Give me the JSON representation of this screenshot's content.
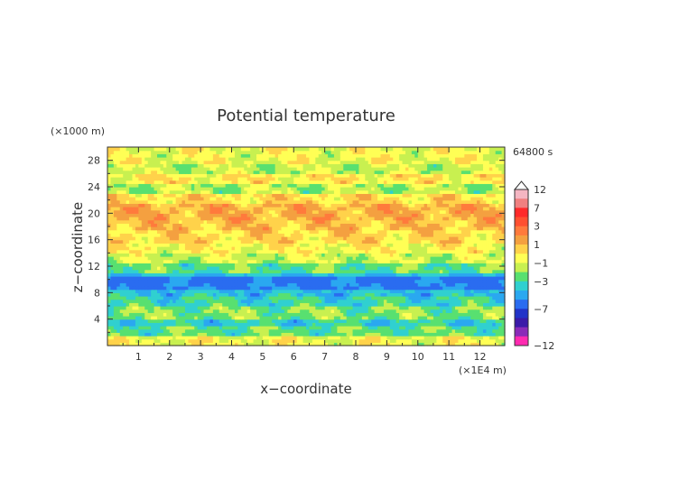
{
  "chart_data": {
    "type": "heatmap",
    "title": "Potential temperature",
    "xlabel": "x−coordinate",
    "ylabel": "z−coordinate",
    "x_unit": "(×1E4 m)",
    "y_unit": "(×1000 m)",
    "time_label": "64800 s",
    "x_ticks": [
      "1",
      "2",
      "3",
      "4",
      "5",
      "6",
      "7",
      "8",
      "9",
      "10",
      "11",
      "12"
    ],
    "y_ticks": [
      "4",
      "8",
      "12",
      "16",
      "20",
      "24",
      "28"
    ],
    "xlim": [
      0,
      12.8
    ],
    "ylim": [
      0,
      30
    ],
    "colorbar": {
      "labels": [
        "12",
        "7",
        "3",
        "1",
        "−1",
        "−3",
        "−7",
        "−12"
      ],
      "label_values": [
        12,
        7,
        3,
        1,
        -1,
        -3,
        -7,
        -12
      ],
      "levels": [
        {
          "value": 12,
          "color": "#f4b6c2"
        },
        {
          "value": 9,
          "color": "#f08080"
        },
        {
          "value": 7,
          "color": "#ff2a2a"
        },
        {
          "value": 5,
          "color": "#ff5030"
        },
        {
          "value": 3,
          "color": "#ff7a3c"
        },
        {
          "value": 2,
          "color": "#f4a040"
        },
        {
          "value": 1,
          "color": "#ffd24a"
        },
        {
          "value": 0,
          "color": "#ffff55"
        },
        {
          "value": -1,
          "color": "#c8f050"
        },
        {
          "value": -2,
          "color": "#58e070"
        },
        {
          "value": -3,
          "color": "#30d0d0"
        },
        {
          "value": -4,
          "color": "#2aa8f0"
        },
        {
          "value": -5,
          "color": "#2a6cf0"
        },
        {
          "value": -7,
          "color": "#2233c8"
        },
        {
          "value": -9,
          "color": "#3a1aa8"
        },
        {
          "value": -10,
          "color": "#8a2ab8"
        },
        {
          "value": -12,
          "color": "#ff2ab0"
        }
      ]
    },
    "bands": [
      {
        "z": [
          0,
          1.6
        ],
        "value": 0.4
      },
      {
        "z": [
          1.6,
          2.8
        ],
        "value": -1.5
      },
      {
        "z": [
          2.8,
          3.8
        ],
        "value": -2.4
      },
      {
        "z": [
          3.8,
          6.2
        ],
        "value": -1.2
      },
      {
        "z": [
          6.2,
          7.5
        ],
        "value": -2.2
      },
      {
        "z": [
          7.5,
          8.3
        ],
        "value": -2.9
      },
      {
        "z": [
          8.3,
          10.3
        ],
        "value": -4.2
      },
      {
        "z": [
          10.3,
          11.2
        ],
        "value": -3.0
      },
      {
        "z": [
          11.2,
          12.3
        ],
        "value": -1.6
      },
      {
        "z": [
          12.3,
          14.0
        ],
        "value": -0.3
      },
      {
        "z": [
          14.0,
          15.5
        ],
        "value": 0.6
      },
      {
        "z": [
          15.5,
          17.5
        ],
        "value": 1.3
      },
      {
        "z": [
          17.5,
          19.0
        ],
        "value": 1.8
      },
      {
        "z": [
          19.0,
          21.5
        ],
        "value": 2.2
      },
      {
        "z": [
          21.5,
          23.0
        ],
        "value": 1.2
      },
      {
        "z": [
          23.0,
          24.5
        ],
        "value": -0.6
      },
      {
        "z": [
          24.5,
          26.0
        ],
        "value": 0.8
      },
      {
        "z": [
          26.0,
          27.5
        ],
        "value": -0.4
      },
      {
        "z": [
          27.5,
          30
        ],
        "value": 0.3
      }
    ],
    "grid": false,
    "legend": "right"
  }
}
